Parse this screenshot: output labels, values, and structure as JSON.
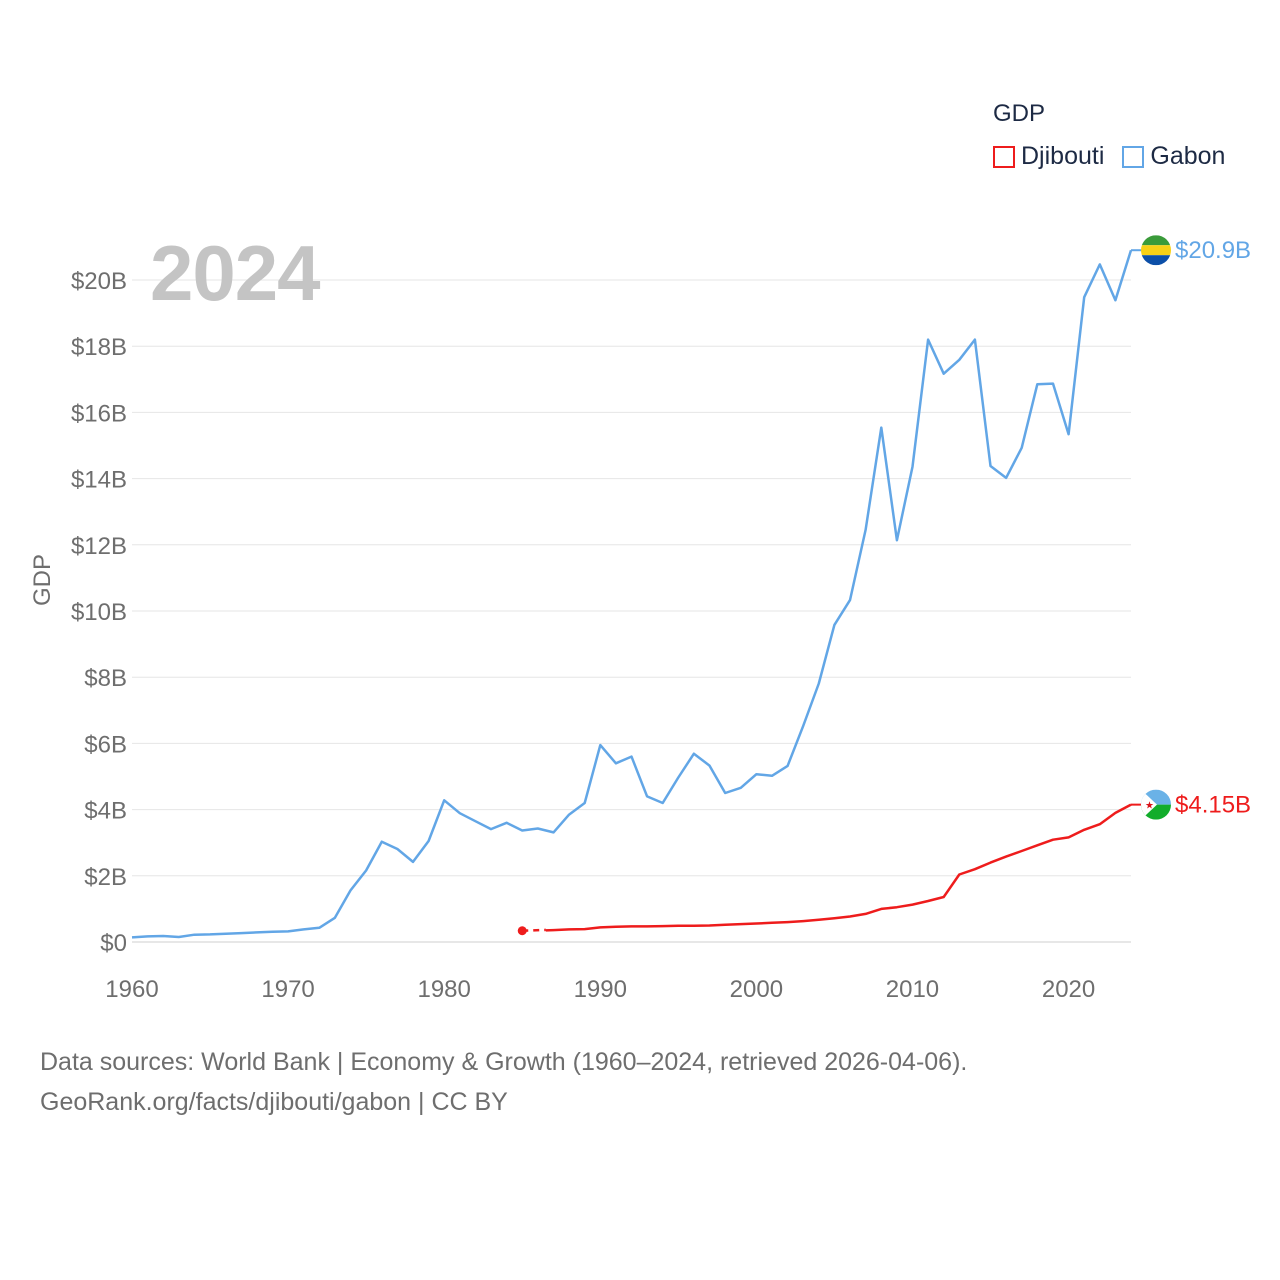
{
  "legend": {
    "title": "GDP",
    "items": [
      {
        "label": "Djibouti",
        "color": "#ee1c1c"
      },
      {
        "label": "Gabon",
        "color": "#62a6e6"
      }
    ]
  },
  "year_label": "2024",
  "footer": {
    "line1": "Data sources: World Bank | Economy & Growth (1960–2024, retrieved 2026-04-06).",
    "line2": "GeoRank.org/facts/djibouti/gabon | CC BY"
  },
  "end_labels": {
    "gabon": "$20.9B",
    "djibouti": "$4.15B"
  },
  "chart_data": {
    "type": "line",
    "title": "",
    "xlabel": "",
    "ylabel": "GDP",
    "xlim": [
      1960,
      2024
    ],
    "ylim": [
      0,
      21
    ],
    "x_ticks": [
      1960,
      1970,
      1980,
      1990,
      2000,
      2010,
      2020
    ],
    "y_ticks": [
      {
        "value": 0,
        "label": "$0"
      },
      {
        "value": 2,
        "label": "$2B"
      },
      {
        "value": 4,
        "label": "$4B"
      },
      {
        "value": 6,
        "label": "$6B"
      },
      {
        "value": 8,
        "label": "$8B"
      },
      {
        "value": 10,
        "label": "$10B"
      },
      {
        "value": 12,
        "label": "$12B"
      },
      {
        "value": 14,
        "label": "$14B"
      },
      {
        "value": 16,
        "label": "$16B"
      },
      {
        "value": 18,
        "label": "$18B"
      },
      {
        "value": 20,
        "label": "$20B"
      }
    ],
    "series": [
      {
        "name": "Gabon",
        "color": "#62a6e6",
        "x": [
          1960,
          1961,
          1962,
          1963,
          1964,
          1965,
          1966,
          1967,
          1968,
          1969,
          1970,
          1971,
          1972,
          1973,
          1974,
          1975,
          1976,
          1977,
          1978,
          1979,
          1980,
          1981,
          1982,
          1983,
          1984,
          1985,
          1986,
          1987,
          1988,
          1989,
          1990,
          1991,
          1992,
          1993,
          1994,
          1995,
          1996,
          1997,
          1998,
          1999,
          2000,
          2001,
          2002,
          2003,
          2004,
          2005,
          2006,
          2007,
          2008,
          2009,
          2010,
          2011,
          2012,
          2013,
          2014,
          2015,
          2016,
          2017,
          2018,
          2019,
          2020,
          2021,
          2022,
          2023,
          2024
        ],
        "values": [
          0.14,
          0.17,
          0.18,
          0.15,
          0.22,
          0.23,
          0.25,
          0.27,
          0.29,
          0.31,
          0.32,
          0.38,
          0.43,
          0.73,
          1.56,
          2.16,
          3.03,
          2.81,
          2.42,
          3.05,
          4.28,
          3.89,
          3.65,
          3.41,
          3.6,
          3.37,
          3.43,
          3.31,
          3.85,
          4.2,
          5.95,
          5.4,
          5.6,
          4.4,
          4.2,
          4.97,
          5.69,
          5.33,
          4.5,
          4.66,
          5.07,
          5.02,
          5.32,
          6.53,
          7.81,
          9.58,
          10.33,
          12.45,
          15.54,
          12.14,
          14.36,
          18.2,
          17.17,
          17.59,
          18.2,
          14.38,
          14.02,
          14.93,
          16.85,
          16.87,
          15.34,
          19.48,
          20.47,
          19.39,
          20.9
        ]
      },
      {
        "name": "Djibouti",
        "color": "#ee1c1c",
        "x": [
          1985,
          1986,
          1987,
          1988,
          1989,
          1990,
          1991,
          1992,
          1993,
          1994,
          1995,
          1996,
          1997,
          1998,
          1999,
          2000,
          2001,
          2002,
          2003,
          2004,
          2005,
          2006,
          2007,
          2008,
          2009,
          2010,
          2011,
          2012,
          2013,
          2014,
          2015,
          2016,
          2017,
          2018,
          2019,
          2020,
          2021,
          2022,
          2023,
          2024
        ],
        "values": [
          0.34,
          0.35,
          0.36,
          0.38,
          0.39,
          0.44,
          0.46,
          0.47,
          0.47,
          0.48,
          0.49,
          0.49,
          0.5,
          0.52,
          0.54,
          0.56,
          0.58,
          0.6,
          0.63,
          0.67,
          0.72,
          0.77,
          0.85,
          1.0,
          1.05,
          1.13,
          1.24,
          1.36,
          2.04,
          2.2,
          2.4,
          2.58,
          2.75,
          2.92,
          3.09,
          3.16,
          3.39,
          3.56,
          3.9,
          4.15
        ]
      }
    ]
  }
}
